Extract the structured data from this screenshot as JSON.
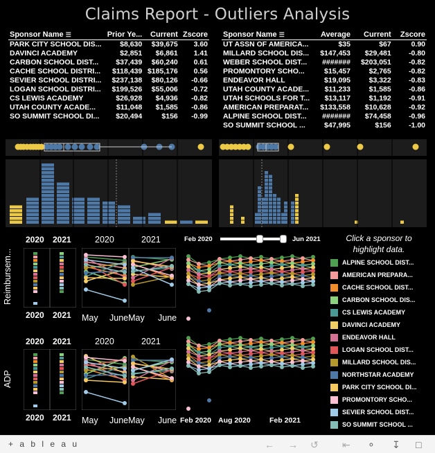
{
  "title": "Claims Report - Outliers Analysis",
  "left_table": {
    "headers": [
      "Sponsor Name",
      "Prior Ye...",
      "Current",
      "Zscore"
    ],
    "rows": [
      [
        "PARK CITY SCHOOL DIS...",
        "$8,630",
        "$39,675",
        "3.60"
      ],
      [
        "DAVINCI ACADEMY",
        "$2,851",
        "$6,861",
        "1.41"
      ],
      [
        "CARBON SCHOOL DIST...",
        "$37,439",
        "$60,240",
        "0.61"
      ],
      [
        "CACHE SCHOOL DISTRI...",
        "$118,439",
        "$185,176",
        "0.56"
      ],
      [
        "SEVIER SCHOOL DISTRI...",
        "$237,138",
        "$80,126",
        "-0.66"
      ],
      [
        "LOGAN SCHOOL DISTRI...",
        "$199,526",
        "$55,006",
        "-0.72"
      ],
      [
        "CS LEWIS ACADEMY",
        "$26,928",
        "$4,936",
        "-0.82"
      ],
      [
        "UTAH COUNTY ACADE...",
        "$11,048",
        "$1,585",
        "-0.86"
      ],
      [
        "SO SUMMIT SCHOOL DI...",
        "$20,494",
        "$156",
        "-0.99"
      ]
    ]
  },
  "right_table": {
    "headers": [
      "Sponsor Name",
      "Average",
      "Current",
      "Zscore"
    ],
    "rows": [
      [
        "UT ASSN OF AMERICA...",
        "$35",
        "$67",
        "0.90"
      ],
      [
        "MILLARD SCHOOL DIS...",
        "$147,453",
        "$29,481",
        "-0.80"
      ],
      [
        "WEBER SCHOOL DIST...",
        "#######",
        "$203,051",
        "-0.82"
      ],
      [
        "PROMONTORY SCHO...",
        "$15,457",
        "$2,765",
        "-0.82"
      ],
      [
        "ENDEAVOR HALL",
        "$19,095",
        "$3,322",
        "-0.83"
      ],
      [
        "UTAH COUNTY ACADE...",
        "$11,233",
        "$1,585",
        "-0.86"
      ],
      [
        "UTAH SCHOOLS FOR T...",
        "$13,117",
        "$1,192",
        "-0.91"
      ],
      [
        "AMERICAN PREPARAT...",
        "$133,558",
        "$10,628",
        "-0.92"
      ],
      [
        "ALPINE SCHOOL DIST...",
        "#######",
        "$74,458",
        "-0.96"
      ],
      [
        "SO SUMMIT SCHOOL ...",
        "$47,995",
        "$156",
        "-1.00"
      ]
    ]
  },
  "slider": {
    "start": "Feb 2020",
    "end": "Jun 2021"
  },
  "instruction": "Click a sponsor to highlight data.",
  "row_labels": {
    "top": "Reimbursem...",
    "bottom": "ADP"
  },
  "year_labels": {
    "a": "2020",
    "b": "2021"
  },
  "month_labels": {
    "may": "May",
    "june_may": "JuneMay",
    "june": "June"
  },
  "timeline_labels": {
    "t1": "Feb 2020",
    "t2": "Aug 2020",
    "t3": "Feb 2021"
  },
  "legend": [
    {
      "name": "ALPINE SCHOOL DIST...",
      "color": "#4e9f50"
    },
    {
      "name": "AMERICAN PREPARA...",
      "color": "#f59a9a"
    },
    {
      "name": "CACHE SCHOOL DIST...",
      "color": "#f28e2b"
    },
    {
      "name": "CARBON SCHOOL DIS...",
      "color": "#8cd17d"
    },
    {
      "name": "CS LEWIS ACADEMY",
      "color": "#499894"
    },
    {
      "name": "DAVINCI ACADEMY",
      "color": "#f1ce63"
    },
    {
      "name": "ENDEAVOR HALL",
      "color": "#d37295"
    },
    {
      "name": "LOGAN SCHOOL DIST...",
      "color": "#e15759"
    },
    {
      "name": "MILLARD SCHOOL DIS...",
      "color": "#b6992d"
    },
    {
      "name": "NORTHSTAR ACADEMY",
      "color": "#4e79a7"
    },
    {
      "name": "PARK CITY SCHOOL DI...",
      "color": "#f6c85f"
    },
    {
      "name": "PROMONTORY SCHO...",
      "color": "#fabfd2"
    },
    {
      "name": "SEVIER SCHOOL DIST...",
      "color": "#a0cbe8"
    },
    {
      "name": "SO SUMMIT SCHOOL ...",
      "color": "#86bcb6"
    }
  ],
  "footer": {
    "brand": "+ a b l e a u"
  },
  "colors": {
    "blue": "#4e79a7",
    "yellow": "#edc948",
    "bg": "#000000"
  }
}
